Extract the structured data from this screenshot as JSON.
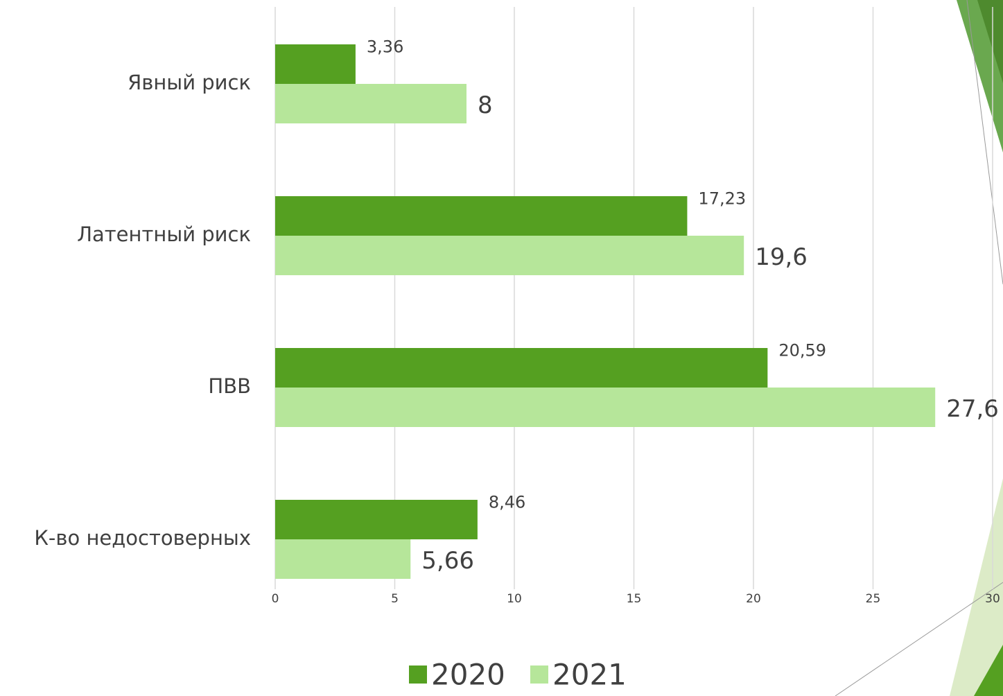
{
  "chart_data": {
    "type": "hbar",
    "categories": [
      "Явный риск",
      "Латентный риск",
      "ПВВ",
      "К-во недостоверных"
    ],
    "series": [
      {
        "name": "2020",
        "color": "#55a021",
        "values": [
          3.36,
          17.23,
          20.59,
          8.46
        ],
        "value_labels": [
          "3,36",
          "17,23",
          "20,59",
          "8,46"
        ]
      },
      {
        "name": "2021",
        "color": "#b6e69a",
        "values": [
          8,
          19.6,
          27.6,
          5.66
        ],
        "value_labels": [
          "8",
          "19,6",
          "27,6",
          "5,66"
        ]
      }
    ],
    "xlim": [
      0,
      30
    ],
    "xticks": [
      0,
      5,
      10,
      15,
      20,
      25,
      30
    ],
    "grid": true
  }
}
